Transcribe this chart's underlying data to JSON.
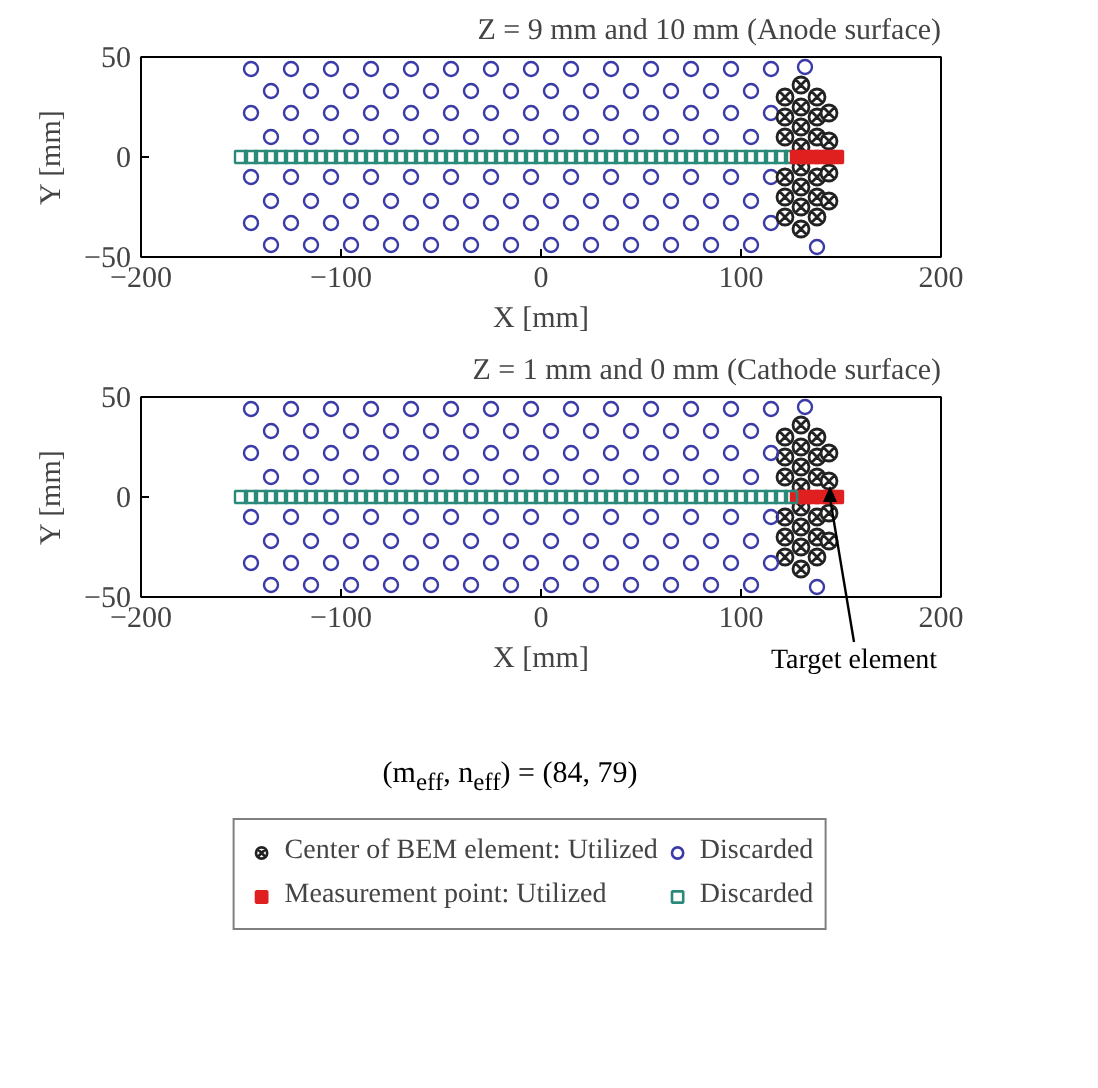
{
  "chart_data": [
    {
      "type": "scatter",
      "title": "Z = 9 mm and 10 mm (Anode surface)",
      "xlabel": "X [mm]",
      "ylabel": "Y [mm]",
      "xlim": [
        -200,
        200
      ],
      "ylim": [
        -50,
        50
      ],
      "xticks": [
        -200,
        -100,
        0,
        100,
        200
      ],
      "yticks": [
        -50,
        0,
        50
      ],
      "grid": false,
      "legend": false,
      "series": [
        {
          "marker": "circle",
          "color": "#3a3aa8",
          "x": [
            -145,
            -125,
            -105,
            -85,
            -65,
            -45,
            -25,
            -5,
            15,
            35,
            55,
            75,
            95,
            115,
            -135,
            -115,
            -95,
            -75,
            -55,
            -35,
            -15,
            5,
            25,
            45,
            65,
            85,
            105,
            -145,
            -125,
            -105,
            -85,
            -65,
            -45,
            -25,
            -5,
            15,
            35,
            55,
            75,
            95,
            115,
            -135,
            -115,
            -95,
            -75,
            -55,
            -35,
            -15,
            5,
            25,
            45,
            65,
            85,
            105,
            -145,
            -125,
            -105,
            -85,
            -65,
            -45,
            -25,
            -5,
            15,
            35,
            55,
            75,
            95,
            115,
            -135,
            -115,
            -95,
            -75,
            -55,
            -35,
            -15,
            5,
            25,
            45,
            65,
            85,
            105,
            -145,
            -125,
            -105,
            -85,
            -65,
            -45,
            -25,
            -5,
            15,
            35,
            55,
            75,
            95,
            115,
            -135,
            -115,
            -95,
            -75,
            -55,
            -35,
            -15,
            5,
            25,
            45,
            65,
            85,
            105,
            132,
            138
          ],
          "values": [
            44,
            44,
            44,
            44,
            44,
            44,
            44,
            44,
            44,
            44,
            44,
            44,
            44,
            44,
            33,
            33,
            33,
            33,
            33,
            33,
            33,
            33,
            33,
            33,
            33,
            33,
            33,
            22,
            22,
            22,
            22,
            22,
            22,
            22,
            22,
            22,
            22,
            22,
            22,
            22,
            22,
            10,
            10,
            10,
            10,
            10,
            10,
            10,
            10,
            10,
            10,
            10,
            10,
            10,
            -10,
            -10,
            -10,
            -10,
            -10,
            -10,
            -10,
            -10,
            -10,
            -10,
            -10,
            -10,
            -10,
            -10,
            -22,
            -22,
            -22,
            -22,
            -22,
            -22,
            -22,
            -22,
            -22,
            -22,
            -22,
            -22,
            -22,
            -33,
            -33,
            -33,
            -33,
            -33,
            -33,
            -33,
            -33,
            -33,
            -33,
            -33,
            -33,
            -33,
            -33,
            -44,
            -44,
            -44,
            -44,
            -44,
            -44,
            -44,
            -44,
            -44,
            -44,
            -44,
            -44,
            -44,
            45,
            -45
          ]
        },
        {
          "marker": "square",
          "color": "#2a8a7a",
          "x": [
            -150,
            -145,
            -140,
            -135,
            -130,
            -125,
            -120,
            -115,
            -110,
            -105,
            -100,
            -95,
            -90,
            -85,
            -80,
            -75,
            -70,
            -65,
            -60,
            -55,
            -50,
            -45,
            -40,
            -35,
            -30,
            -25,
            -20,
            -15,
            -10,
            -5,
            0,
            5,
            10,
            15,
            20,
            25,
            30,
            35,
            40,
            45,
            50,
            55,
            60,
            65,
            70,
            75,
            80,
            85,
            90,
            95,
            100,
            105,
            110,
            115,
            120,
            125
          ],
          "values": [
            0,
            0,
            0,
            0,
            0,
            0,
            0,
            0,
            0,
            0,
            0,
            0,
            0,
            0,
            0,
            0,
            0,
            0,
            0,
            0,
            0,
            0,
            0,
            0,
            0,
            0,
            0,
            0,
            0,
            0,
            0,
            0,
            0,
            0,
            0,
            0,
            0,
            0,
            0,
            0,
            0,
            0,
            0,
            0,
            0,
            0,
            0,
            0,
            0,
            0,
            0,
            0,
            0,
            0,
            0,
            0
          ]
        },
        {
          "marker": "cross",
          "color": "#222222",
          "x": [
            122,
            122,
            122,
            122,
            122,
            122,
            130,
            130,
            130,
            130,
            130,
            130,
            130,
            130,
            138,
            138,
            138,
            138,
            138,
            138,
            144,
            144,
            144,
            144
          ],
          "values": [
            30,
            20,
            10,
            -10,
            -20,
            -30,
            36,
            25,
            15,
            5,
            -5,
            -15,
            -25,
            -36,
            30,
            20,
            10,
            -10,
            -20,
            -30,
            22,
            8,
            -8,
            -22
          ]
        },
        {
          "marker": "square",
          "color": "#e02020",
          "x": [
            128,
            132,
            136,
            140,
            144,
            148
          ],
          "values": [
            0,
            0,
            0,
            0,
            0,
            0
          ]
        }
      ]
    },
    {
      "type": "scatter",
      "title": "Z = 1 mm and 0 mm (Cathode surface)",
      "xlabel": "X [mm]",
      "ylabel": "Y [mm]",
      "xlim": [
        -200,
        200
      ],
      "ylim": [
        -50,
        50
      ],
      "xticks": [
        -200,
        -100,
        0,
        100,
        200
      ],
      "yticks": [
        -50,
        0,
        50
      ],
      "grid": false,
      "legend": "bottom",
      "annotations": [
        {
          "text": "Target element",
          "x": 140,
          "y": 0
        },
        "(m$_{eff}$, n$_{eff}$) = (84, 79)"
      ],
      "series": [
        {
          "name": "Center of BEM element: Utilized",
          "marker": "cross",
          "color": "#222222",
          "x": [
            122,
            122,
            122,
            122,
            122,
            122,
            130,
            130,
            130,
            130,
            130,
            130,
            130,
            130,
            138,
            138,
            138,
            138,
            138,
            138,
            144,
            144,
            144,
            144
          ],
          "values": [
            30,
            20,
            10,
            -10,
            -20,
            -30,
            36,
            25,
            15,
            5,
            -5,
            -15,
            -25,
            -36,
            30,
            20,
            10,
            -10,
            -20,
            -30,
            22,
            8,
            -8,
            -22
          ]
        },
        {
          "name": "Discarded",
          "marker": "circle",
          "color": "#3a3aa8",
          "x": [
            -145,
            -125,
            -105,
            -85,
            -65,
            -45,
            -25,
            -5,
            15,
            35,
            55,
            75,
            95,
            115,
            -135,
            -115,
            -95,
            -75,
            -55,
            -35,
            -15,
            5,
            25,
            45,
            65,
            85,
            105,
            -145,
            -125,
            -105,
            -85,
            -65,
            -45,
            -25,
            -5,
            15,
            35,
            55,
            75,
            95,
            115,
            -135,
            -115,
            -95,
            -75,
            -55,
            -35,
            -15,
            5,
            25,
            45,
            65,
            85,
            105,
            -145,
            -125,
            -105,
            -85,
            -65,
            -45,
            -25,
            -5,
            15,
            35,
            55,
            75,
            95,
            115,
            -135,
            -115,
            -95,
            -75,
            -55,
            -35,
            -15,
            5,
            25,
            45,
            65,
            85,
            105,
            -145,
            -125,
            -105,
            -85,
            -65,
            -45,
            -25,
            -5,
            15,
            35,
            55,
            75,
            95,
            115,
            -135,
            -115,
            -95,
            -75,
            -55,
            -35,
            -15,
            5,
            25,
            45,
            65,
            85,
            105,
            132,
            138
          ],
          "values": [
            44,
            44,
            44,
            44,
            44,
            44,
            44,
            44,
            44,
            44,
            44,
            44,
            44,
            44,
            33,
            33,
            33,
            33,
            33,
            33,
            33,
            33,
            33,
            33,
            33,
            33,
            33,
            22,
            22,
            22,
            22,
            22,
            22,
            22,
            22,
            22,
            22,
            22,
            22,
            22,
            22,
            10,
            10,
            10,
            10,
            10,
            10,
            10,
            10,
            10,
            10,
            10,
            10,
            10,
            -10,
            -10,
            -10,
            -10,
            -10,
            -10,
            -10,
            -10,
            -10,
            -10,
            -10,
            -10,
            -10,
            -10,
            -22,
            -22,
            -22,
            -22,
            -22,
            -22,
            -22,
            -22,
            -22,
            -22,
            -22,
            -22,
            -22,
            -33,
            -33,
            -33,
            -33,
            -33,
            -33,
            -33,
            -33,
            -33,
            -33,
            -33,
            -33,
            -33,
            -33,
            -44,
            -44,
            -44,
            -44,
            -44,
            -44,
            -44,
            -44,
            -44,
            -44,
            -44,
            -44,
            -44,
            45,
            -45
          ]
        },
        {
          "name": "Measurement point: Utilized",
          "marker": "square",
          "color": "#e02020",
          "x": [
            128,
            132,
            136,
            140,
            144,
            148
          ],
          "values": [
            0,
            0,
            0,
            0,
            0,
            0
          ]
        },
        {
          "name": "Discarded",
          "marker": "square",
          "color": "#2a8a7a",
          "x": [
            -150,
            -145,
            -140,
            -135,
            -130,
            -125,
            -120,
            -115,
            -110,
            -105,
            -100,
            -95,
            -90,
            -85,
            -80,
            -75,
            -70,
            -65,
            -60,
            -55,
            -50,
            -45,
            -40,
            -35,
            -30,
            -25,
            -20,
            -15,
            -10,
            -5,
            0,
            5,
            10,
            15,
            20,
            25,
            30,
            35,
            40,
            45,
            50,
            55,
            60,
            65,
            70,
            75,
            80,
            85,
            90,
            95,
            100,
            105,
            110,
            115,
            120,
            125
          ],
          "values": [
            0,
            0,
            0,
            0,
            0,
            0,
            0,
            0,
            0,
            0,
            0,
            0,
            0,
            0,
            0,
            0,
            0,
            0,
            0,
            0,
            0,
            0,
            0,
            0,
            0,
            0,
            0,
            0,
            0,
            0,
            0,
            0,
            0,
            0,
            0,
            0,
            0,
            0,
            0,
            0,
            0,
            0,
            0,
            0,
            0,
            0,
            0,
            0,
            0,
            0,
            0,
            0,
            0,
            0,
            0,
            0
          ]
        }
      ]
    }
  ]
}
